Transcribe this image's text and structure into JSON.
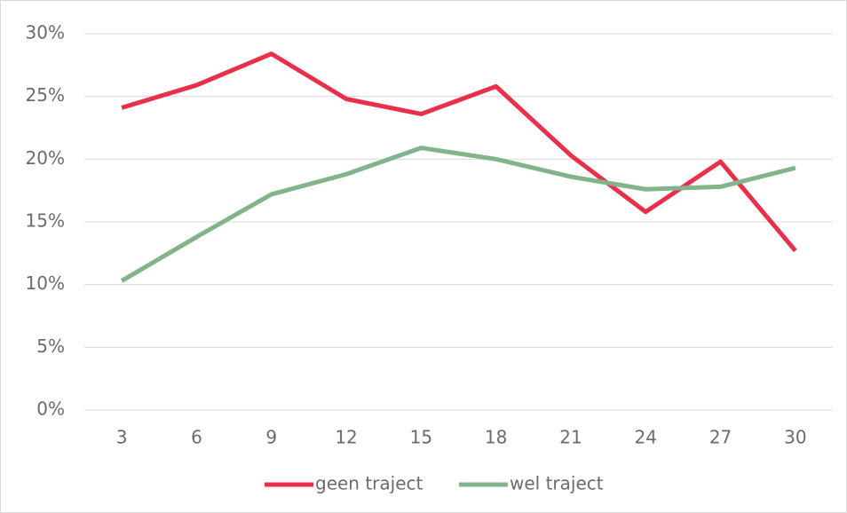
{
  "chart_data": {
    "type": "line",
    "categories": [
      "3",
      "6",
      "9",
      "12",
      "15",
      "18",
      "21",
      "24",
      "27",
      "30"
    ],
    "series": [
      {
        "name": "geen traject",
        "color": "#e8304a",
        "values": [
          24.1,
          25.9,
          28.4,
          24.8,
          23.6,
          25.8,
          20.3,
          15.8,
          19.8,
          12.7
        ]
      },
      {
        "name": "wel traject",
        "color": "#82b38a",
        "values": [
          10.3,
          13.8,
          17.2,
          18.8,
          20.9,
          20.0,
          18.6,
          17.6,
          17.8,
          19.3
        ]
      }
    ],
    "ylim": [
      0,
      30
    ],
    "yticks": [
      {
        "value": 0,
        "label": "0%"
      },
      {
        "value": 5,
        "label": "5%"
      },
      {
        "value": 10,
        "label": "10%"
      },
      {
        "value": 15,
        "label": "15%"
      },
      {
        "value": 20,
        "label": "20%"
      },
      {
        "value": 25,
        "label": "25%"
      },
      {
        "value": 30,
        "label": "30%"
      }
    ],
    "grid": true,
    "legend": "bottom"
  }
}
